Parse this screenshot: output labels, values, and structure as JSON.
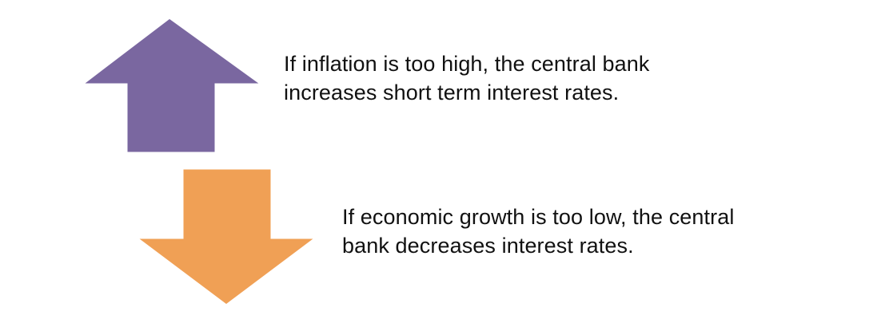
{
  "diagram": {
    "up_arrow": {
      "icon": "arrow-up-icon",
      "color": "#7a67a0",
      "caption_lines": [
        "If inflation is too high, the central bank",
        "increases short term interest rates."
      ]
    },
    "down_arrow": {
      "icon": "arrow-down-icon",
      "color": "#f0a055",
      "caption_lines": [
        "If economic growth is too low, the central",
        "bank decreases interest rates."
      ]
    }
  }
}
